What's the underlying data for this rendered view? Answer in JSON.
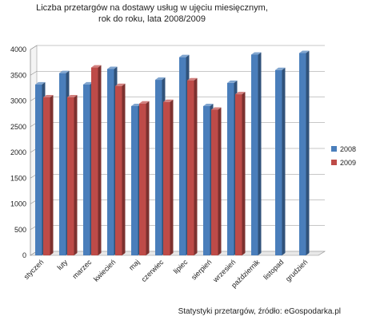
{
  "chart_data": {
    "type": "bar",
    "title_lines": [
      "Liczba przetargów na dostawy usług w ujęciu miesięcznym,",
      "rok do roku, lata 2008/2009"
    ],
    "categories": [
      "styczeń",
      "luty",
      "marzec",
      "kwiecień",
      "maj",
      "czerwiec",
      "lipiec",
      "sierpień",
      "wrzesień",
      "październik",
      "listopad",
      "grudzień"
    ],
    "series": [
      {
        "name": "2008",
        "color": "#4a7ebb",
        "values": [
          3320,
          3540,
          3320,
          3620,
          2900,
          3410,
          3850,
          2900,
          3350,
          3900,
          3600,
          3930
        ]
      },
      {
        "name": "2009",
        "color": "#be4b48",
        "values": [
          3070,
          3070,
          3650,
          3290,
          2950,
          2980,
          3400,
          2830,
          3130,
          null,
          null,
          null
        ]
      }
    ],
    "yticks": [
      0,
      500,
      1000,
      1500,
      2000,
      2500,
      3000,
      3500,
      4000
    ],
    "ylim": [
      0,
      4000
    ],
    "grid": true,
    "legend_position": "right"
  },
  "source": "Statystyki przetargów, źródło: eGospodarka.pl"
}
